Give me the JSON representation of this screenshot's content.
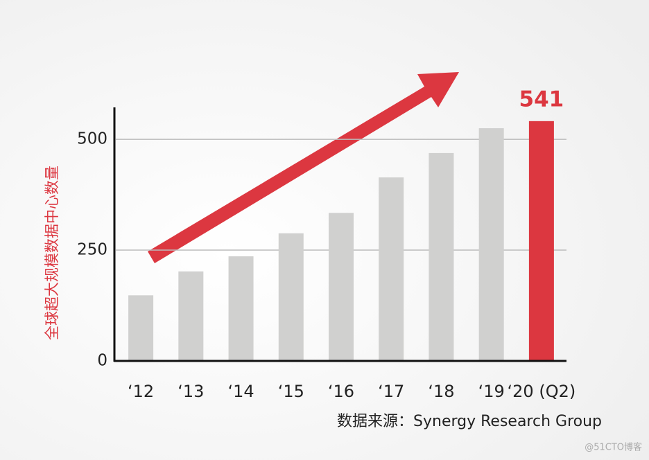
{
  "chart_data": {
    "type": "bar",
    "y_label": "全球超大规模数据中心数量",
    "categories": [
      "‘12",
      "‘13",
      "‘14",
      "‘15",
      "‘16",
      "‘17",
      "‘18",
      "‘19",
      "‘20 (Q2)"
    ],
    "values": [
      148,
      202,
      236,
      288,
      334,
      414,
      469,
      525,
      541
    ],
    "colors": [
      "#d0d0cf",
      "#d0d0cf",
      "#d0d0cf",
      "#d0d0cf",
      "#d0d0cf",
      "#d0d0cf",
      "#d0d0cf",
      "#d0d0cf",
      "#dc3740"
    ],
    "value_labels": [
      null,
      null,
      null,
      null,
      null,
      null,
      null,
      null,
      "541"
    ],
    "ylim": [
      0,
      572
    ],
    "yticks": [
      0,
      250,
      500
    ],
    "grid": true,
    "source": "数据来源：Synergy Research Group",
    "watermark": "@51CTO博客"
  }
}
